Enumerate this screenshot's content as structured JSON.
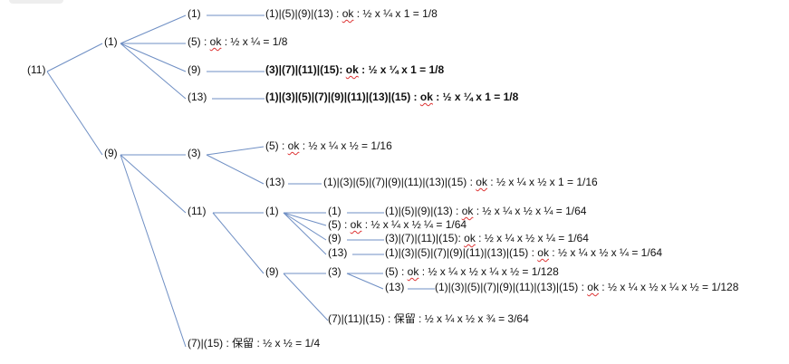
{
  "line_color": "#6f8fc4",
  "nodes": {
    "root": "(11)",
    "a": "(1)",
    "a1": "(1)",
    "a5": "(5)",
    "a9": "(9)",
    "a13": "(13)",
    "b": "(9)",
    "b3": "(3)",
    "b3_13": "(13)",
    "b11": "(11)",
    "b11_1": "(1)",
    "b11_1_1": "(1)",
    "b11_1_9": "(9)",
    "b11_1_13": "(13)",
    "b11_9": "(9)",
    "b11_9_3": "(3)",
    "b11_9_3_13": "(13)"
  },
  "results": {
    "a1": {
      "pre": "(1)|(5)|(9)|(13) : ",
      "ok": "ok",
      "post": " : ½ x ¼ x 1 = 1/8"
    },
    "a5": {
      "pre": "(5) : ",
      "ok": "ok",
      "post": " : ½ x ¼ = 1/8"
    },
    "a9": {
      "pre": "(3)|(7)|(11)|(15): ",
      "ok": "ok",
      "post": " : ½ x ¼ x 1 = 1/8"
    },
    "a13": {
      "pre": "(1)|(3)|(5)|(7)|(9)|(11)|(13)|(15) : ",
      "ok": "ok",
      "post": " : ½ x ¼ x 1 = 1/8"
    },
    "b3_5": {
      "pre": "(5) : ",
      "ok": "ok",
      "post": " : ½ x ¼ x ½ = 1/16"
    },
    "b3_13": {
      "pre": "(1)|(3)|(5)|(7)|(9)|(11)|(13)|(15) : ",
      "ok": "ok",
      "post": " : ½ x ¼ x ½ x 1 = 1/16"
    },
    "b11_1_1": {
      "pre": "(1)|(5)|(9)|(13) : ",
      "ok": "ok",
      "post": " : ½ x ¼ x ½ x ¼ = 1/64"
    },
    "b11_1_5": {
      "pre": "(5) : ",
      "ok": "ok",
      "post": " : ½ x ¼ x ½ ¼ = 1/64"
    },
    "b11_1_9": {
      "pre": "(3)|(7)|(11)|(15): ",
      "ok": "ok",
      "post": " : ½ x ¼ x ½ x ¼ = 1/64"
    },
    "b11_1_13": {
      "pre": "(1)|(3)|(5)|(7)|(9)|(11)|(13)|(15) : ",
      "ok": "ok",
      "post": " : ½ x ¼ x ½ x ¼ = 1/64"
    },
    "b11_9_3_5": {
      "pre": "(5) : ",
      "ok": "ok",
      "post": " : ½ x ¼ x ½ x ¼ x ½ = 1/128"
    },
    "b11_9_3_13": {
      "pre": "(1)|(3)|(5)|(7)|(9)|(11)|(13)|(15) : ",
      "ok": "ok",
      "post": " : ½ x ¼ x ½ x ¼ x ½ = 1/128"
    },
    "b11_9_rest": "(7)|(11)|(15) : 保留 : ½ x ¼ x ½ x ¾  = 3/64",
    "b_rest": "(7)|(15) : 保留 : ½ x ½  = 1/4"
  }
}
